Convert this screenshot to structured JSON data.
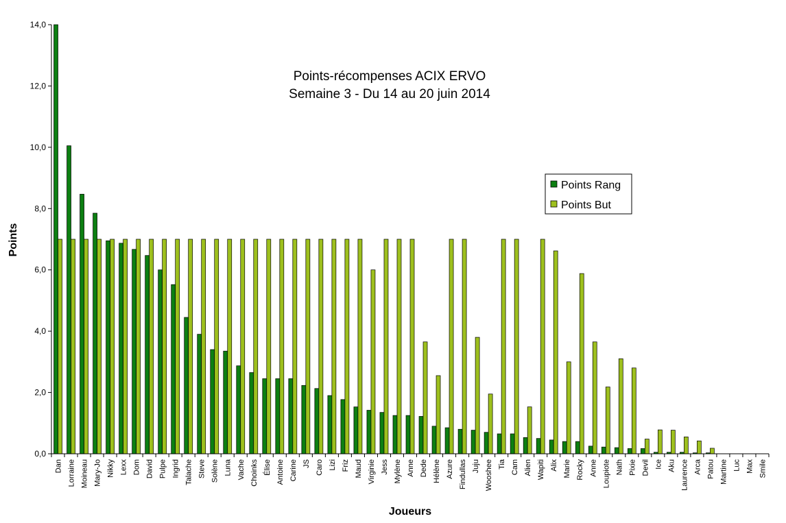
{
  "chart_data": {
    "type": "bar",
    "title_line1": "Points-récompenses ACIX ERVO",
    "title_line2": "Semaine 3 - Du 14 au 20 juin 2014",
    "xlabel": "Joueurs",
    "ylabel": "Points",
    "ylim": [
      0,
      14
    ],
    "yticks": [
      "0,0",
      "2,0",
      "4,0",
      "6,0",
      "8,0",
      "10,0",
      "12,0",
      "14,0"
    ],
    "legend_position": "right",
    "categories": [
      "Dan",
      "Lorraine",
      "Moineau",
      "Mary-Jo",
      "Nikky",
      "Lexx",
      "Dom",
      "David",
      "Pulpe",
      "Ingrid",
      "Talache",
      "Steve",
      "Solène",
      "Luna",
      "Vache",
      "Choinks",
      "Élise",
      "Antoine",
      "Carine",
      "JS",
      "Caro",
      "Lizi",
      "Friz",
      "Maud",
      "Virginie",
      "Jess",
      "Mylène",
      "Anne",
      "Dede",
      "Hélène",
      "Azure",
      "Findullas",
      "Juju",
      "Wooshee",
      "Tia",
      "Cam",
      "Alien",
      "Wapiti",
      "Alix",
      "Marie",
      "Rocky",
      "Anne",
      "Loupiote",
      "Nath",
      "Pixie",
      "Devil",
      "Ice",
      "Aku",
      "Laurence",
      "Arca",
      "Patou",
      "Martine",
      "Luc",
      "Max",
      "Smile"
    ],
    "series": [
      {
        "name": "Points Rang",
        "color": "#0d7f12",
        "values": [
          14.0,
          10.05,
          8.47,
          7.85,
          6.95,
          6.87,
          6.67,
          6.47,
          6.0,
          5.52,
          4.45,
          3.9,
          3.4,
          3.35,
          2.87,
          2.65,
          2.45,
          2.45,
          2.45,
          2.23,
          2.13,
          1.9,
          1.77,
          1.53,
          1.42,
          1.35,
          1.25,
          1.25,
          1.22,
          0.9,
          0.85,
          0.8,
          0.77,
          0.7,
          0.65,
          0.65,
          0.53,
          0.5,
          0.45,
          0.4,
          0.4,
          0.25,
          0.22,
          0.2,
          0.17,
          0.17,
          0.05,
          0.05,
          0.05,
          0.03,
          0.03,
          0,
          0,
          0,
          0
        ]
      },
      {
        "name": "Points But",
        "color": "#9ec01e",
        "values": [
          7.0,
          7.0,
          7.0,
          7.0,
          7.0,
          7.0,
          7.0,
          7.0,
          7.0,
          7.0,
          7.0,
          7.0,
          7.0,
          7.0,
          7.0,
          7.0,
          7.0,
          7.0,
          7.0,
          7.0,
          7.0,
          7.0,
          7.0,
          7.0,
          6.0,
          7.0,
          7.0,
          7.0,
          3.65,
          2.55,
          7.0,
          7.0,
          3.8,
          1.95,
          7.0,
          7.0,
          1.53,
          7.0,
          6.62,
          3.0,
          5.88,
          3.65,
          2.18,
          3.1,
          2.8,
          0.48,
          0.78,
          0.77,
          0.55,
          0.42,
          0.18,
          0,
          0,
          0,
          0
        ]
      }
    ]
  }
}
